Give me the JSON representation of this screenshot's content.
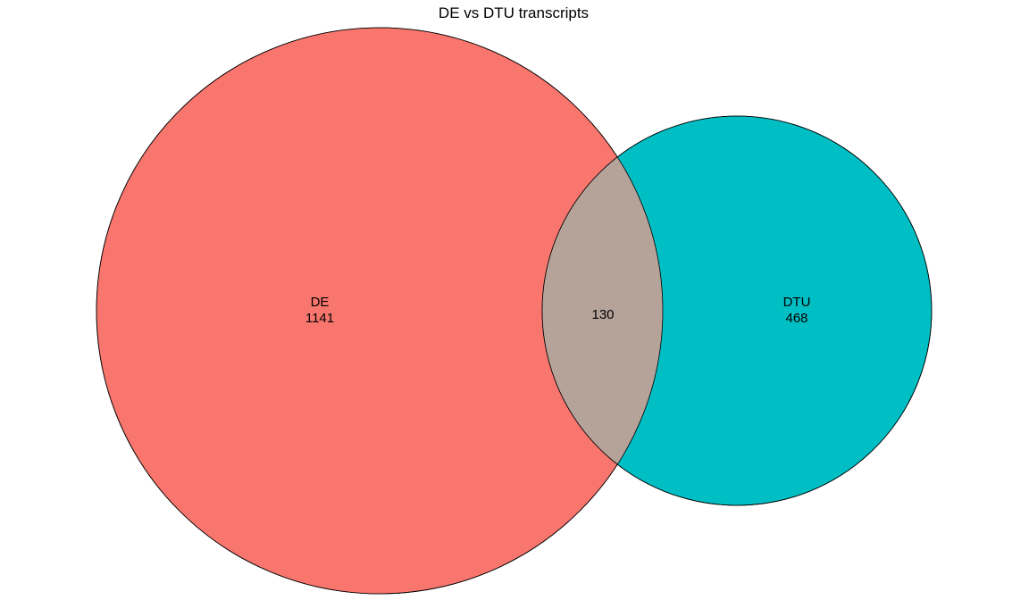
{
  "title": "DE vs DTU transcripts",
  "sets": [
    {
      "name": "DE",
      "count": "1141",
      "color": "#F8766D"
    },
    {
      "name": "DTU",
      "count": "468",
      "color": "#00BFC4"
    }
  ],
  "intersection": {
    "count": "130",
    "color": "#B5A39A"
  },
  "outline_color": "#000000"
}
